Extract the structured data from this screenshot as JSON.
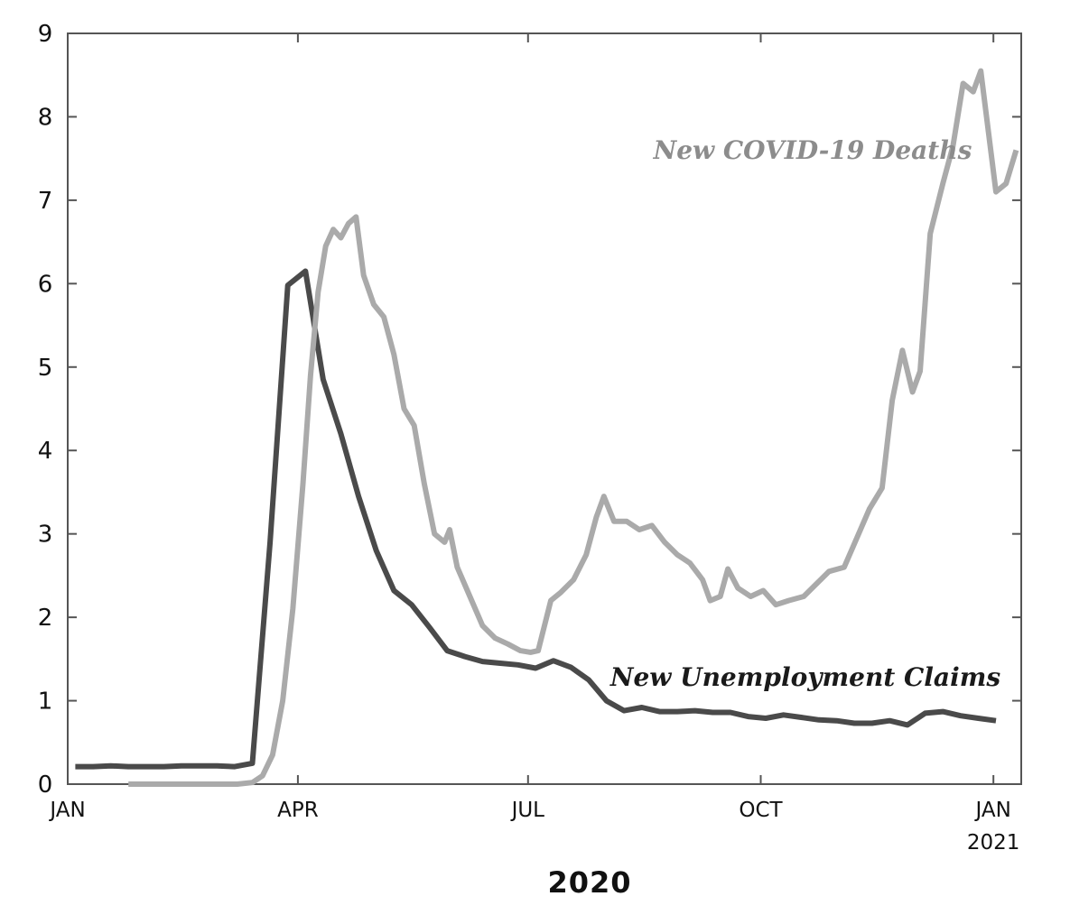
{
  "chart_data": {
    "type": "line",
    "title": "",
    "xlabel": "2020",
    "ylabel": "",
    "xlim": [
      "2020-01-01",
      "2021-01-12"
    ],
    "ylim": [
      0,
      9
    ],
    "grid": false,
    "yticks": [
      0,
      1,
      2,
      3,
      4,
      5,
      6,
      7,
      8,
      9
    ],
    "xticks": [
      {
        "date": "2020-01-01",
        "label": "JAN",
        "sublabel": ""
      },
      {
        "date": "2020-04-01",
        "label": "APR",
        "sublabel": ""
      },
      {
        "date": "2020-07-01",
        "label": "JUL",
        "sublabel": ""
      },
      {
        "date": "2020-10-01",
        "label": "OCT",
        "sublabel": ""
      },
      {
        "date": "2021-01-01",
        "label": "JAN",
        "sublabel": "2021"
      }
    ],
    "series": [
      {
        "name": "New Unemployment Claims",
        "color": "#4a4a4a",
        "points": [
          [
            "2020-01-04",
            0.21
          ],
          [
            "2020-01-11",
            0.21
          ],
          [
            "2020-01-18",
            0.22
          ],
          [
            "2020-01-25",
            0.21
          ],
          [
            "2020-02-01",
            0.21
          ],
          [
            "2020-02-08",
            0.21
          ],
          [
            "2020-02-15",
            0.22
          ],
          [
            "2020-02-22",
            0.22
          ],
          [
            "2020-02-29",
            0.22
          ],
          [
            "2020-03-07",
            0.21
          ],
          [
            "2020-03-14",
            0.25
          ],
          [
            "2020-03-21",
            2.9
          ],
          [
            "2020-03-28",
            5.98
          ],
          [
            "2020-04-04",
            6.15
          ],
          [
            "2020-04-11",
            4.85
          ],
          [
            "2020-04-18",
            4.2
          ],
          [
            "2020-04-25",
            3.45
          ],
          [
            "2020-05-02",
            2.8
          ],
          [
            "2020-05-09",
            2.32
          ],
          [
            "2020-05-16",
            2.15
          ],
          [
            "2020-05-23",
            1.88
          ],
          [
            "2020-05-30",
            1.6
          ],
          [
            "2020-06-06",
            1.53
          ],
          [
            "2020-06-13",
            1.47
          ],
          [
            "2020-06-20",
            1.45
          ],
          [
            "2020-06-27",
            1.43
          ],
          [
            "2020-07-04",
            1.39
          ],
          [
            "2020-07-11",
            1.48
          ],
          [
            "2020-07-18",
            1.4
          ],
          [
            "2020-07-25",
            1.25
          ],
          [
            "2020-08-01",
            1.0
          ],
          [
            "2020-08-08",
            0.88
          ],
          [
            "2020-08-15",
            0.92
          ],
          [
            "2020-08-22",
            0.87
          ],
          [
            "2020-08-29",
            0.87
          ],
          [
            "2020-09-05",
            0.88
          ],
          [
            "2020-09-12",
            0.86
          ],
          [
            "2020-09-19",
            0.86
          ],
          [
            "2020-09-26",
            0.81
          ],
          [
            "2020-10-03",
            0.79
          ],
          [
            "2020-10-10",
            0.83
          ],
          [
            "2020-10-17",
            0.8
          ],
          [
            "2020-10-24",
            0.77
          ],
          [
            "2020-10-31",
            0.76
          ],
          [
            "2020-11-07",
            0.73
          ],
          [
            "2020-11-14",
            0.73
          ],
          [
            "2020-11-21",
            0.76
          ],
          [
            "2020-11-28",
            0.71
          ],
          [
            "2020-12-05",
            0.85
          ],
          [
            "2020-12-12",
            0.87
          ],
          [
            "2020-12-19",
            0.82
          ],
          [
            "2020-12-26",
            0.79
          ],
          [
            "2021-01-02",
            0.76
          ]
        ]
      },
      {
        "name": "New COVID-19 Deaths",
        "color": "#aaaaaa",
        "points": [
          [
            "2020-01-25",
            0
          ],
          [
            "2020-02-15",
            0
          ],
          [
            "2020-03-08",
            0
          ],
          [
            "2020-03-14",
            0.02
          ],
          [
            "2020-03-18",
            0.1
          ],
          [
            "2020-03-22",
            0.35
          ],
          [
            "2020-03-26",
            1.0
          ],
          [
            "2020-03-30",
            2.1
          ],
          [
            "2020-04-03",
            3.6
          ],
          [
            "2020-04-06",
            4.9
          ],
          [
            "2020-04-09",
            5.9
          ],
          [
            "2020-04-12",
            6.45
          ],
          [
            "2020-04-15",
            6.65
          ],
          [
            "2020-04-18",
            6.55
          ],
          [
            "2020-04-21",
            6.72
          ],
          [
            "2020-04-24",
            6.8
          ],
          [
            "2020-04-27",
            6.1
          ],
          [
            "2020-05-01",
            5.75
          ],
          [
            "2020-05-05",
            5.6
          ],
          [
            "2020-05-09",
            5.15
          ],
          [
            "2020-05-13",
            4.5
          ],
          [
            "2020-05-17",
            4.3
          ],
          [
            "2020-05-21",
            3.6
          ],
          [
            "2020-05-25",
            3.0
          ],
          [
            "2020-05-29",
            2.9
          ],
          [
            "2020-05-31",
            3.05
          ],
          [
            "2020-06-03",
            2.6
          ],
          [
            "2020-06-08",
            2.25
          ],
          [
            "2020-06-13",
            1.9
          ],
          [
            "2020-06-18",
            1.75
          ],
          [
            "2020-06-23",
            1.68
          ],
          [
            "2020-06-28",
            1.6
          ],
          [
            "2020-07-02",
            1.58
          ],
          [
            "2020-07-05",
            1.6
          ],
          [
            "2020-07-10",
            2.2
          ],
          [
            "2020-07-14",
            2.3
          ],
          [
            "2020-07-19",
            2.45
          ],
          [
            "2020-07-24",
            2.75
          ],
          [
            "2020-07-28",
            3.2
          ],
          [
            "2020-07-31",
            3.45
          ],
          [
            "2020-08-04",
            3.15
          ],
          [
            "2020-08-09",
            3.15
          ],
          [
            "2020-08-14",
            3.05
          ],
          [
            "2020-08-19",
            3.1
          ],
          [
            "2020-08-24",
            2.9
          ],
          [
            "2020-08-29",
            2.75
          ],
          [
            "2020-09-03",
            2.65
          ],
          [
            "2020-09-08",
            2.45
          ],
          [
            "2020-09-11",
            2.2
          ],
          [
            "2020-09-15",
            2.25
          ],
          [
            "2020-09-18",
            2.58
          ],
          [
            "2020-09-22",
            2.35
          ],
          [
            "2020-09-27",
            2.25
          ],
          [
            "2020-10-02",
            2.32
          ],
          [
            "2020-10-07",
            2.15
          ],
          [
            "2020-10-12",
            2.2
          ],
          [
            "2020-10-18",
            2.25
          ],
          [
            "2020-10-23",
            2.4
          ],
          [
            "2020-10-28",
            2.55
          ],
          [
            "2020-11-03",
            2.6
          ],
          [
            "2020-11-08",
            2.95
          ],
          [
            "2020-11-13",
            3.3
          ],
          [
            "2020-11-18",
            3.55
          ],
          [
            "2020-11-22",
            4.6
          ],
          [
            "2020-11-26",
            5.2
          ],
          [
            "2020-11-30",
            4.7
          ],
          [
            "2020-12-03",
            4.95
          ],
          [
            "2020-12-07",
            6.6
          ],
          [
            "2020-12-12",
            7.2
          ],
          [
            "2020-12-16",
            7.65
          ],
          [
            "2020-12-20",
            8.4
          ],
          [
            "2020-12-24",
            8.3
          ],
          [
            "2020-12-27",
            8.55
          ],
          [
            "2021-01-02",
            7.1
          ],
          [
            "2021-01-06",
            7.2
          ],
          [
            "2021-01-10",
            7.6
          ]
        ]
      }
    ],
    "annotations": [
      {
        "text": "New COVID-19 Deaths",
        "series": "New COVID-19 Deaths"
      },
      {
        "text": "New Unemployment Claims",
        "series": "New Unemployment Claims"
      }
    ]
  }
}
